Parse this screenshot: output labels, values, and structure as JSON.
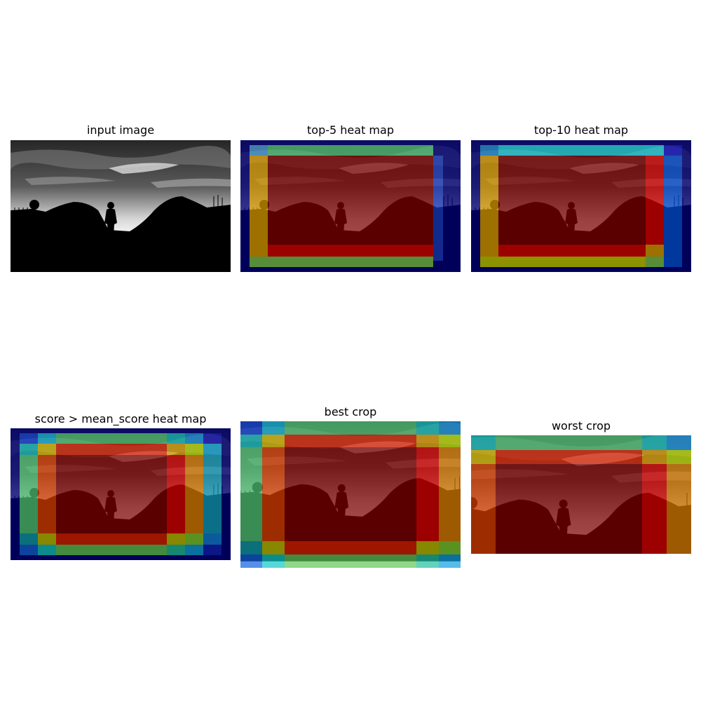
{
  "panels": [
    {
      "id": "input",
      "title": "input image"
    },
    {
      "id": "top5",
      "title": "top-5 heat map"
    },
    {
      "id": "top10",
      "title": "top-10 heat map"
    },
    {
      "id": "mean",
      "title": "score > mean_score heat map"
    },
    {
      "id": "best",
      "title": "best crop"
    },
    {
      "id": "worst",
      "title": "worst crop"
    }
  ],
  "colors": {
    "background": "#ffffff",
    "jet_dark_red": "#800000",
    "jet_red": "#ff0000",
    "jet_orange": "#ff8000",
    "jet_yellow": "#ffff00",
    "jet_green": "#50c878",
    "jet_cyan": "#00d0f0",
    "jet_blue": "#0040ff",
    "jet_navy": "#000080"
  }
}
